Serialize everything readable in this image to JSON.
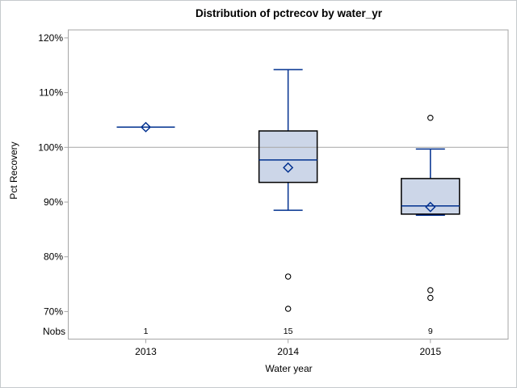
{
  "title": "Distribution of pctrecov by water_yr",
  "y_axis": {
    "label": "Pct Recovery",
    "ticks": [
      "120%",
      "110%",
      "100%",
      "90%",
      "80%",
      "70%"
    ],
    "tick_values": [
      120,
      110,
      100,
      90,
      80,
      70
    ]
  },
  "x_axis": {
    "label": "Water year",
    "categories": [
      "2013",
      "2014",
      "2015"
    ]
  },
  "nobs": {
    "label": "Nobs",
    "values": [
      "1",
      "15",
      "9"
    ]
  },
  "colors": {
    "box_fill": "#ccd6e8",
    "box_border": "#000000",
    "line": "#00308f",
    "frame": "#a6a6a6",
    "reference_line": "#a6a6a6",
    "outlier_stroke": "#000000",
    "text": "#000000",
    "figure_border": "#c6cacd"
  },
  "chart_data": {
    "type": "box",
    "title": "Distribution of pctrecov by water_yr",
    "xlabel": "Water year",
    "ylabel": "Pct Recovery",
    "ylim": [
      65,
      121.5
    ],
    "y_tick_unit": "%",
    "reference_line": 100,
    "grid": false,
    "categories": [
      "2013",
      "2014",
      "2015"
    ],
    "nobs": [
      1,
      15,
      9
    ],
    "series": [
      {
        "category": "2013",
        "n": 1,
        "single_value": true,
        "median": 103.7,
        "mean": 103.7,
        "q1": 103.7,
        "q3": 103.7,
        "whisker_low": 103.7,
        "whisker_high": 103.7,
        "outliers": []
      },
      {
        "category": "2014",
        "n": 15,
        "single_value": false,
        "whisker_high": 114.2,
        "q3": 103.0,
        "median": 97.7,
        "mean": 96.3,
        "q1": 93.6,
        "whisker_low": 88.5,
        "outliers": [
          76.4,
          70.5
        ]
      },
      {
        "category": "2015",
        "n": 9,
        "single_value": false,
        "whisker_high": 99.7,
        "q3": 94.3,
        "median": 89.3,
        "mean": 89.1,
        "q1": 87.8,
        "whisker_low": 87.6,
        "outliers": [
          105.4,
          73.9,
          72.5
        ]
      }
    ]
  }
}
